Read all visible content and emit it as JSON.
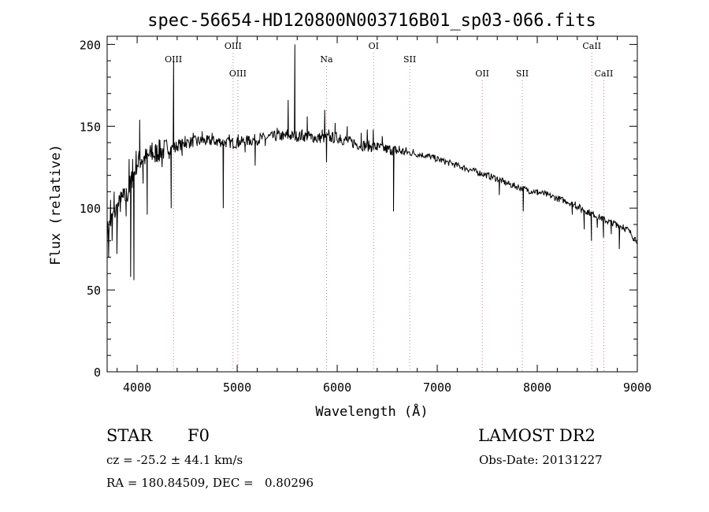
{
  "chart_data": {
    "type": "line",
    "title": "spec-56654-HD120800N003716B01_sp03-066.fits",
    "xlabel": "Wavelength (Å)",
    "ylabel": "Flux (relative)",
    "xlim": [
      3700,
      9000
    ],
    "ylim": [
      0,
      205
    ],
    "xticks": [
      4000,
      5000,
      6000,
      7000,
      8000,
      9000
    ],
    "yticks": [
      0,
      50,
      100,
      150,
      200
    ],
    "grid": false,
    "line_color": "#000000",
    "marker_color": "#c08080",
    "markers": [
      {
        "label": "OIII",
        "x": 4363,
        "row": "upper"
      },
      {
        "label": "OIII",
        "x": 4959,
        "row": "top"
      },
      {
        "label": "OIII",
        "x": 5007,
        "row": "lower"
      },
      {
        "label": "Na",
        "x": 5893,
        "row": "upper"
      },
      {
        "label": "OI",
        "x": 6364,
        "row": "top"
      },
      {
        "label": "SII",
        "x": 6725,
        "row": "upper"
      },
      {
        "label": "OII",
        "x": 7450,
        "row": "lower"
      },
      {
        "label": "SII",
        "x": 7850,
        "row": "lower"
      },
      {
        "label": "CaII",
        "x": 8545,
        "row": "top"
      },
      {
        "label": "CaII",
        "x": 8665,
        "row": "lower"
      }
    ],
    "continuum": {
      "x": [
        3700,
        3740,
        3780,
        3820,
        3860,
        3900,
        3950,
        4000,
        4050,
        4100,
        4150,
        4200,
        4250,
        4300,
        4350,
        4400,
        4500,
        4600,
        4700,
        4800,
        4900,
        5000,
        5100,
        5200,
        5300,
        5400,
        5500,
        5600,
        5700,
        5800,
        5900,
        6000,
        6100,
        6200,
        6300,
        6400,
        6500,
        6600,
        6700,
        6800,
        6900,
        7000,
        7100,
        7200,
        7300,
        7400,
        7500,
        7600,
        7700,
        7800,
        7900,
        8000,
        8100,
        8200,
        8300,
        8400,
        8500,
        8600,
        8700,
        8800,
        8900,
        9000
      ],
      "y": [
        85,
        92,
        98,
        102,
        105,
        108,
        118,
        128,
        130,
        131,
        133,
        134,
        135,
        136,
        137,
        138,
        140,
        141,
        141,
        141,
        140,
        140,
        141,
        142,
        143,
        144,
        144,
        144,
        144,
        143,
        143,
        143,
        141,
        139,
        138,
        137,
        136,
        135,
        134,
        133,
        132,
        130,
        128,
        126,
        124,
        122,
        120,
        118,
        115,
        113,
        111,
        110,
        108,
        106,
        104,
        101,
        98,
        95,
        92,
        90,
        87,
        80
      ]
    },
    "features": [
      {
        "x": 3715,
        "y": 70
      },
      {
        "x": 3735,
        "y": 105
      },
      {
        "x": 3750,
        "y": 80
      },
      {
        "x": 3770,
        "y": 110
      },
      {
        "x": 3798,
        "y": 72
      },
      {
        "x": 3835,
        "y": 110
      },
      {
        "x": 3860,
        "y": 112
      },
      {
        "x": 3890,
        "y": 95
      },
      {
        "x": 3920,
        "y": 130
      },
      {
        "x": 3935,
        "y": 58
      },
      {
        "x": 3955,
        "y": 130
      },
      {
        "x": 3968,
        "y": 56
      },
      {
        "x": 3990,
        "y": 135
      },
      {
        "x": 4010,
        "y": 125
      },
      {
        "x": 4025,
        "y": 154
      },
      {
        "x": 4045,
        "y": 130
      },
      {
        "x": 4060,
        "y": 115
      },
      {
        "x": 4101,
        "y": 96
      },
      {
        "x": 4120,
        "y": 132
      },
      {
        "x": 4150,
        "y": 140
      },
      {
        "x": 4180,
        "y": 128
      },
      {
        "x": 4220,
        "y": 142
      },
      {
        "x": 4250,
        "y": 125
      },
      {
        "x": 4300,
        "y": 138
      },
      {
        "x": 4320,
        "y": 130
      },
      {
        "x": 4340,
        "y": 100
      },
      {
        "x": 4365,
        "y": 190
      },
      {
        "x": 4380,
        "y": 134
      },
      {
        "x": 4420,
        "y": 142
      },
      {
        "x": 4450,
        "y": 132
      },
      {
        "x": 4480,
        "y": 144
      },
      {
        "x": 4520,
        "y": 140
      },
      {
        "x": 4560,
        "y": 146
      },
      {
        "x": 4600,
        "y": 138
      },
      {
        "x": 4650,
        "y": 147
      },
      {
        "x": 4700,
        "y": 140
      },
      {
        "x": 4750,
        "y": 146
      },
      {
        "x": 4800,
        "y": 138
      },
      {
        "x": 4840,
        "y": 140
      },
      {
        "x": 4861,
        "y": 100
      },
      {
        "x": 4885,
        "y": 140
      },
      {
        "x": 4920,
        "y": 145
      },
      {
        "x": 4960,
        "y": 136
      },
      {
        "x": 5010,
        "y": 145
      },
      {
        "x": 5080,
        "y": 134
      },
      {
        "x": 5120,
        "y": 144
      },
      {
        "x": 5180,
        "y": 126
      },
      {
        "x": 5230,
        "y": 146
      },
      {
        "x": 5280,
        "y": 138
      },
      {
        "x": 5320,
        "y": 145
      },
      {
        "x": 5400,
        "y": 149
      },
      {
        "x": 5460,
        "y": 142
      },
      {
        "x": 5500,
        "y": 148
      },
      {
        "x": 5510,
        "y": 166
      },
      {
        "x": 5530,
        "y": 145
      },
      {
        "x": 5577,
        "y": 200
      },
      {
        "x": 5590,
        "y": 144
      },
      {
        "x": 5650,
        "y": 148
      },
      {
        "x": 5700,
        "y": 156
      },
      {
        "x": 5740,
        "y": 142
      },
      {
        "x": 5800,
        "y": 140
      },
      {
        "x": 5850,
        "y": 148
      },
      {
        "x": 5875,
        "y": 160
      },
      {
        "x": 5893,
        "y": 128
      },
      {
        "x": 5915,
        "y": 148
      },
      {
        "x": 5940,
        "y": 143
      },
      {
        "x": 5980,
        "y": 152
      },
      {
        "x": 6030,
        "y": 145
      },
      {
        "x": 6100,
        "y": 150
      },
      {
        "x": 6170,
        "y": 142
      },
      {
        "x": 6240,
        "y": 146
      },
      {
        "x": 6300,
        "y": 148
      },
      {
        "x": 6340,
        "y": 138
      },
      {
        "x": 6360,
        "y": 148
      },
      {
        "x": 6400,
        "y": 140
      },
      {
        "x": 6450,
        "y": 144
      },
      {
        "x": 6500,
        "y": 134
      },
      {
        "x": 6540,
        "y": 136
      },
      {
        "x": 6563,
        "y": 98
      },
      {
        "x": 6585,
        "y": 134
      },
      {
        "x": 6620,
        "y": 138
      },
      {
        "x": 6680,
        "y": 134
      },
      {
        "x": 6760,
        "y": 136
      },
      {
        "x": 6900,
        "y": 131
      },
      {
        "x": 7000,
        "y": 129
      },
      {
        "x": 7150,
        "y": 127
      },
      {
        "x": 7300,
        "y": 124
      },
      {
        "x": 7450,
        "y": 120
      },
      {
        "x": 7550,
        "y": 119
      },
      {
        "x": 7620,
        "y": 108
      },
      {
        "x": 7660,
        "y": 116
      },
      {
        "x": 7800,
        "y": 112
      },
      {
        "x": 7860,
        "y": 98
      },
      {
        "x": 7900,
        "y": 110
      },
      {
        "x": 8000,
        "y": 108
      },
      {
        "x": 8100,
        "y": 108
      },
      {
        "x": 8200,
        "y": 104
      },
      {
        "x": 8300,
        "y": 104
      },
      {
        "x": 8350,
        "y": 96
      },
      {
        "x": 8380,
        "y": 104
      },
      {
        "x": 8440,
        "y": 97
      },
      {
        "x": 8470,
        "y": 87
      },
      {
        "x": 8500,
        "y": 96
      },
      {
        "x": 8542,
        "y": 80
      },
      {
        "x": 8570,
        "y": 96
      },
      {
        "x": 8600,
        "y": 88
      },
      {
        "x": 8640,
        "y": 95
      },
      {
        "x": 8662,
        "y": 82
      },
      {
        "x": 8700,
        "y": 92
      },
      {
        "x": 8740,
        "y": 84
      },
      {
        "x": 8790,
        "y": 88
      },
      {
        "x": 8820,
        "y": 75
      },
      {
        "x": 8860,
        "y": 90
      },
      {
        "x": 8920,
        "y": 86
      },
      {
        "x": 8960,
        "y": 80
      },
      {
        "x": 9000,
        "y": 82
      }
    ]
  },
  "info": {
    "object_type": "STAR",
    "subclass": "F0",
    "survey": "LAMOST DR2",
    "redshift_line": "cz = -25.2 ± 44.1 km/s",
    "obs_date_line": "Obs-Date: 20131227",
    "coords_line": "RA = 180.84509, DEC =   0.80296"
  }
}
